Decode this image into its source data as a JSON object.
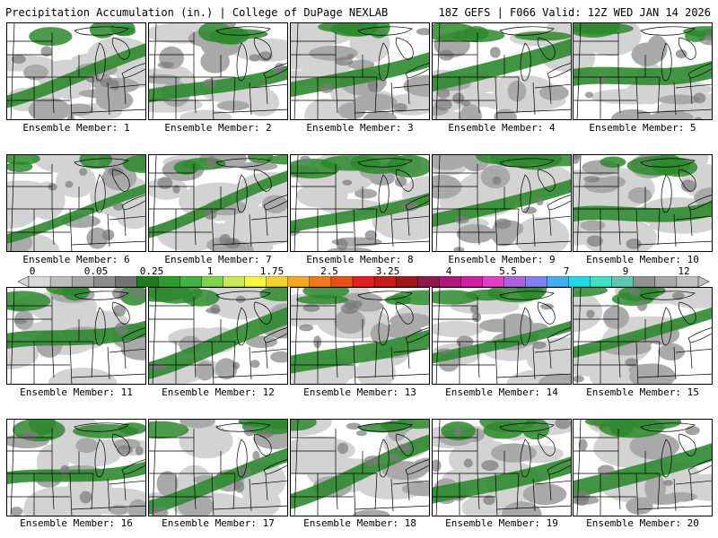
{
  "header": {
    "title": "Precipitation Accumulation (in.) | College of DuPage NEXLAB",
    "run_info": "18Z GEFS | F066 Valid: 12Z WED JAN 14 2026"
  },
  "members": [
    "Ensemble Member: 1",
    "Ensemble Member: 2",
    "Ensemble Member: 3",
    "Ensemble Member: 4",
    "Ensemble Member: 5",
    "Ensemble Member: 6",
    "Ensemble Member: 7",
    "Ensemble Member: 8",
    "Ensemble Member: 9",
    "Ensemble Member: 10",
    "Ensemble Member: 11",
    "Ensemble Member: 12",
    "Ensemble Member: 13",
    "Ensemble Member: 14",
    "Ensemble Member: 15",
    "Ensemble Member: 16",
    "Ensemble Member: 17",
    "Ensemble Member: 18",
    "Ensemble Member: 19",
    "Ensemble Member: 20"
  ],
  "colorbar": {
    "labels": [
      "0",
      "0.05",
      "0.25",
      "1",
      "1.75",
      "2.5",
      "3.25",
      "4",
      "5.5",
      "7",
      "9",
      "12"
    ],
    "colors": [
      "#d9d9d9",
      "#bdbdbd",
      "#a6a6a6",
      "#8c8c8c",
      "#737373",
      "#1e7b1e",
      "#2e9a2e",
      "#3fb53f",
      "#7fd34f",
      "#c8e85a",
      "#f5f542",
      "#f5d030",
      "#f5a623",
      "#f07a1a",
      "#e8501a",
      "#e02020",
      "#c81a1a",
      "#a01818",
      "#8b1a4a",
      "#b0187a",
      "#d01ea0",
      "#e040c8",
      "#b060e0",
      "#8080f0",
      "#40b0f0",
      "#20d8e8",
      "#40e0c0",
      "#60c8b0",
      "#909090",
      "#a8a8a8",
      "#c0c0c0"
    ],
    "green": "#2d8a2d",
    "gray_light": "#d3d3d3",
    "gray_mid": "#a9a9a9",
    "gray_dark": "#7a7a7a"
  }
}
